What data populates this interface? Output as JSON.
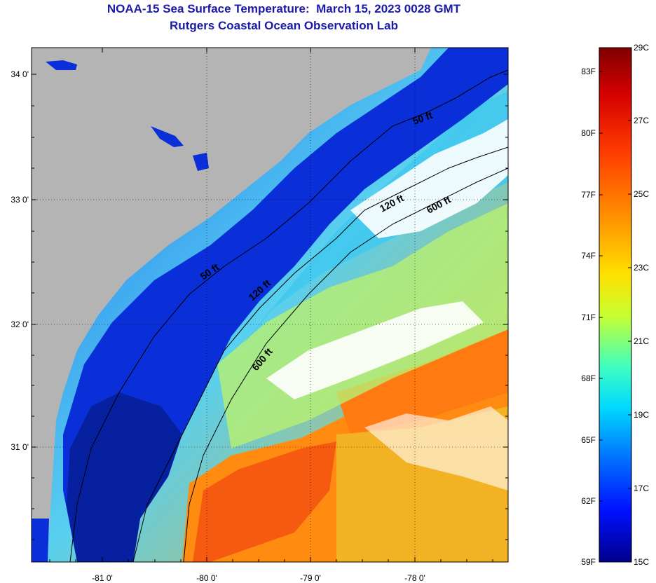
{
  "title": {
    "line1": "NOAA-15 Sea Surface Temperature:  March 15, 2023 0028 GMT",
    "line2": "Rutgers Coastal Ocean Observation Lab"
  },
  "map": {
    "lat_ticks": [
      "34 0'",
      "33 0'",
      "32 0'",
      "31 0'"
    ],
    "lon_ticks": [
      "-81 0'",
      "-80 0'",
      "-79 0'",
      "-78 0'"
    ],
    "isobath_labels": [
      "50 ft",
      "120 ft",
      "600 ft",
      "50 ft",
      "120 ft",
      "600 ft"
    ],
    "colors": {
      "land": "#b4b4b4",
      "coastal_water": "#0a2fd8",
      "cloud": "#ffffff"
    }
  },
  "colorbar": {
    "fahrenheit_labels": [
      "83F",
      "80F",
      "77F",
      "74F",
      "71F",
      "68F",
      "65F",
      "62F",
      "59F"
    ],
    "celsius_labels": [
      "29C",
      "27C",
      "25C",
      "23C",
      "21C",
      "19C",
      "17C",
      "15C"
    ],
    "range_c": [
      15,
      29
    ]
  }
}
